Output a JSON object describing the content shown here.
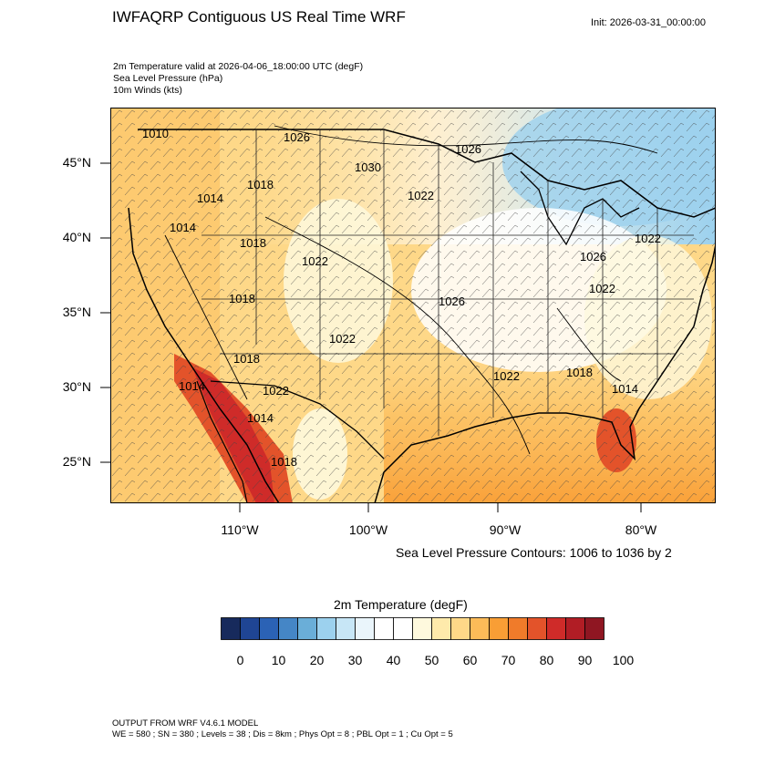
{
  "header": {
    "title": "IWFAQRP Contiguous US Real Time WRF",
    "init": "Init: 2026-03-31_00:00:00",
    "sub1": "2m Temperature valid at 2026-04-06_18:00:00 UTC   (degF)",
    "sub2": "Sea Level Pressure   (hPa)",
    "sub3": "10m Winds   (kts)"
  },
  "axes": {
    "lat_labels": [
      "45°N",
      "40°N",
      "35°N",
      "30°N",
      "25°N"
    ],
    "lon_labels": [
      "110°W",
      "100°W",
      "90°W",
      "80°W"
    ]
  },
  "isobars": {
    "labels": [
      "1026",
      "1026",
      "1030",
      "1022",
      "1018",
      "1014",
      "1014",
      "1010",
      "1018",
      "1022",
      "1018",
      "1026",
      "1022",
      "1022",
      "1026",
      "1022",
      "1018",
      "1022",
      "1018",
      "1014",
      "1014",
      "1014",
      "1018",
      "1022"
    ]
  },
  "contour_note": "Sea Level Pressure Contours: 1006 to 1036 by 2",
  "colorbar": {
    "title": "2m Temperature  (degF)",
    "labels": [
      "0",
      "10",
      "20",
      "30",
      "40",
      "50",
      "60",
      "70",
      "80",
      "90",
      "100"
    ],
    "colors": [
      "#172a5c",
      "#1f4594",
      "#2b62b5",
      "#4586c6",
      "#6aaed8",
      "#9cd1ee",
      "#c7e6f6",
      "#eaf5fb",
      "#ffffff",
      "#ffffff",
      "#fef9dd",
      "#feeaab",
      "#fed888",
      "#fcbb58",
      "#f99e35",
      "#f07b2a",
      "#e3532a",
      "#cf2b29",
      "#b11d25",
      "#8f1622"
    ]
  },
  "footer": {
    "line1": "OUTPUT FROM WRF V4.6.1 MODEL",
    "line2": "WE = 580 ; SN = 380 ; Levels = 38 ; Dis = 8km ; Phys Opt = 8 ; PBL Opt = 1 ; Cu Opt = 5"
  }
}
